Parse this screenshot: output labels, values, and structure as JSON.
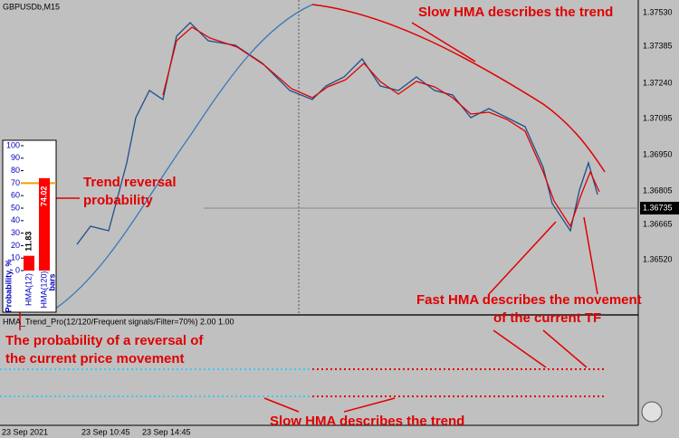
{
  "window": {
    "title": "GBPUSDb,M15"
  },
  "price_axis": {
    "labels": [
      "1.37530",
      "1.37385",
      "1.37240",
      "1.37095",
      "1.36950",
      "1.36805",
      "1.36665",
      "1.36520"
    ],
    "current": "1.36735"
  },
  "time_axis": {
    "labels": [
      "23 Sep 2021",
      "23 Sep 10:45",
      "23 Sep 14:45"
    ]
  },
  "indicator": {
    "label": "HMA_Trend_Pro(12/120/Frequent signals/Filter=70%) 2.00 1.00"
  },
  "probability_panel": {
    "axis_title": "Probability, %",
    "ticks": [
      0,
      10,
      20,
      30,
      40,
      50,
      60,
      70,
      80,
      90,
      100
    ],
    "unit": "bars",
    "bars": [
      {
        "name": "HMA(12)",
        "value": 11.83,
        "label": "11.83"
      },
      {
        "name": "HMA(120)",
        "value": 74.02,
        "label": "74.02"
      }
    ]
  },
  "annotations": {
    "slow_top": "Slow HMA describes the trend",
    "reversal": [
      "Trend reversal",
      "probability"
    ],
    "fast": [
      "Fast HMA describes the movement",
      "of the current TF"
    ],
    "probability": [
      "The probability of a reversal of",
      "the current price movement"
    ],
    "slow_bottom": "Slow HMA describes the trend"
  }
}
